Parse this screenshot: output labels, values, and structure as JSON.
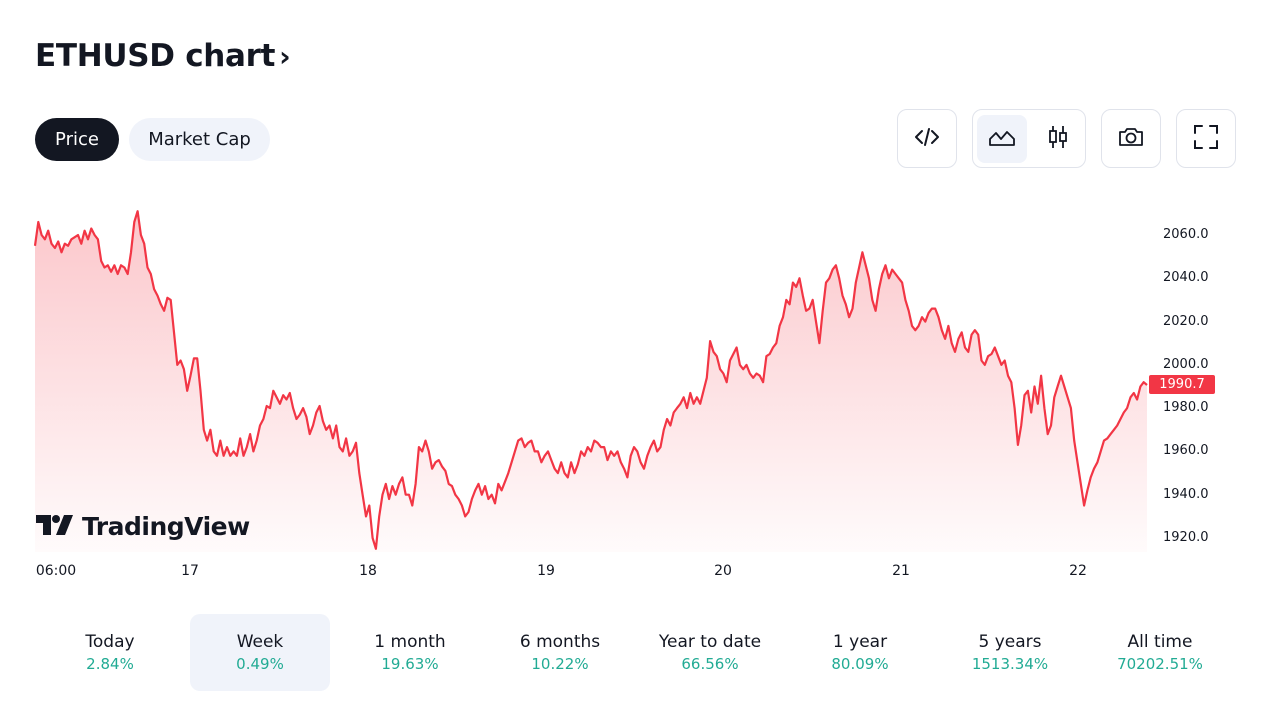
{
  "header": {
    "title": "ETHUSD chart",
    "chevron": "›"
  },
  "tabs": [
    {
      "label": "Price",
      "active": true
    },
    {
      "label": "Market Cap",
      "active": false
    }
  ],
  "toolbar": {
    "embed_icon": "code-icon",
    "area_icon": "area-chart-icon",
    "candle_icon": "candlestick-icon",
    "snapshot_icon": "camera-icon",
    "fullscreen_icon": "fullscreen-icon",
    "selected_chart_style": "area"
  },
  "watermark": {
    "text": "TradingView",
    "logo": "tradingview-logo"
  },
  "colors": {
    "line": "#f23645",
    "positive": "#22ab94",
    "dark": "#131722",
    "light_bg": "#f0f3fa"
  },
  "chart_data": {
    "type": "area",
    "symbol": "ETHUSD",
    "last_price_label": "1990.7",
    "x_tick_labels": [
      "06:00",
      "17",
      "18",
      "19",
      "20",
      "21",
      "22"
    ],
    "y_tick_labels": [
      "2060.0",
      "2040.0",
      "2020.0",
      "2000.0",
      "1980.0",
      "1960.0",
      "1940.0",
      "1920.0"
    ],
    "ylim": [
      1916,
      2080
    ],
    "grid": false,
    "series": [
      {
        "values": [
          2055,
          2066,
          2060,
          2058,
          2062,
          2056,
          2054,
          2057,
          2052,
          2056,
          2055,
          2058,
          2059,
          2060,
          2056,
          2062,
          2058,
          2063,
          2060,
          2058,
          2048,
          2045,
          2046,
          2043,
          2046,
          2042,
          2046,
          2045,
          2042,
          2052,
          2066,
          2071,
          2060,
          2056,
          2045,
          2042,
          2035,
          2032,
          2028,
          2025,
          2031,
          2030,
          2015,
          2000,
          2002,
          1998,
          1988,
          1995,
          2003,
          2003,
          1988,
          1970,
          1965,
          1970,
          1960,
          1958,
          1965,
          1958,
          1962,
          1958,
          1960,
          1958,
          1966,
          1958,
          1962,
          1968,
          1960,
          1965,
          1972,
          1975,
          1981,
          1980,
          1988,
          1985,
          1982,
          1986,
          1984,
          1987,
          1980,
          1975,
          1977,
          1980,
          1976,
          1968,
          1972,
          1978,
          1981,
          1974,
          1970,
          1972,
          1966,
          1972,
          1962,
          1960,
          1966,
          1958,
          1960,
          1964,
          1950,
          1940,
          1930,
          1935,
          1920,
          1915,
          1930,
          1940,
          1945,
          1938,
          1944,
          1940,
          1945,
          1948,
          1940,
          1940,
          1935,
          1945,
          1962,
          1960,
          1965,
          1960,
          1952,
          1955,
          1956,
          1953,
          1951,
          1945,
          1944,
          1940,
          1938,
          1935,
          1930,
          1932,
          1938,
          1942,
          1945,
          1940,
          1944,
          1938,
          1940,
          1936,
          1945,
          1942,
          1946,
          1950,
          1955,
          1960,
          1965,
          1966,
          1962,
          1964,
          1965,
          1960,
          1960,
          1955,
          1958,
          1960,
          1956,
          1952,
          1950,
          1955,
          1950,
          1948,
          1955,
          1950,
          1954,
          1960,
          1958,
          1962,
          1960,
          1965,
          1964,
          1962,
          1962,
          1956,
          1960,
          1958,
          1960,
          1955,
          1952,
          1948,
          1958,
          1962,
          1960,
          1955,
          1952,
          1958,
          1962,
          1965,
          1960,
          1962,
          1970,
          1975,
          1972,
          1978,
          1980,
          1982,
          1985,
          1980,
          1987,
          1982,
          1985,
          1982,
          1988,
          1994,
          2011,
          2006,
          2004,
          1998,
          1996,
          1992,
          2002,
          2005,
          2008,
          2000,
          1998,
          2000,
          1996,
          1994,
          1996,
          1995,
          1992,
          2004,
          2005,
          2008,
          2010,
          2018,
          2022,
          2030,
          2028,
          2038,
          2036,
          2040,
          2032,
          2025,
          2026,
          2030,
          2020,
          2010,
          2025,
          2038,
          2040,
          2044,
          2046,
          2040,
          2032,
          2028,
          2022,
          2026,
          2038,
          2045,
          2052,
          2046,
          2040,
          2030,
          2025,
          2035,
          2042,
          2046,
          2040,
          2044,
          2042,
          2040,
          2038,
          2030,
          2025,
          2018,
          2016,
          2018,
          2022,
          2020,
          2024,
          2026,
          2026,
          2022,
          2016,
          2012,
          2018,
          2010,
          2006,
          2012,
          2015,
          2008,
          2006,
          2014,
          2016,
          2014,
          2002,
          2000,
          2004,
          2005,
          2008,
          2004,
          2000,
          2002,
          1995,
          1992,
          1980,
          1963,
          1972,
          1986,
          1988,
          1978,
          1990,
          1982,
          1995,
          1980,
          1968,
          1972,
          1985,
          1990,
          1995,
          1990,
          1985,
          1980,
          1965,
          1955,
          1945,
          1935,
          1942,
          1948,
          1952,
          1955,
          1960,
          1965,
          1966,
          1968,
          1970,
          1972,
          1975,
          1978,
          1980,
          1985,
          1987,
          1984,
          1990,
          1992,
          1990.7
        ]
      }
    ]
  },
  "periods": [
    {
      "label": "Today",
      "value": "2.84%",
      "selected": false
    },
    {
      "label": "Week",
      "value": "0.49%",
      "selected": true
    },
    {
      "label": "1 month",
      "value": "19.63%",
      "selected": false
    },
    {
      "label": "6 months",
      "value": "10.22%",
      "selected": false
    },
    {
      "label": "Year to date",
      "value": "66.56%",
      "selected": false
    },
    {
      "label": "1 year",
      "value": "80.09%",
      "selected": false
    },
    {
      "label": "5 years",
      "value": "1513.34%",
      "selected": false
    },
    {
      "label": "All time",
      "value": "70202.51%",
      "selected": false
    }
  ]
}
